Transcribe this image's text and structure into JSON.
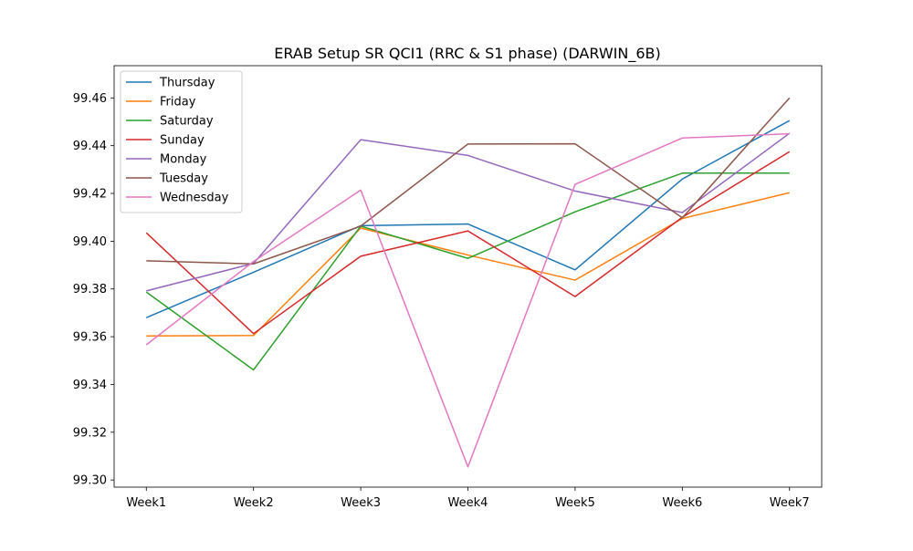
{
  "chart_data": {
    "type": "line",
    "title": "ERAB Setup SR QCI1 (RRC & S1 phase) (DARWIN_6B)",
    "xlabel": "",
    "ylabel": "",
    "categories": [
      "Week1",
      "Week2",
      "Week3",
      "Week4",
      "Week5",
      "Week6",
      "Week7"
    ],
    "ylim": [
      99.297,
      99.4735
    ],
    "yticks": [
      99.3,
      99.32,
      99.34,
      99.36,
      99.38,
      99.4,
      99.42,
      99.44,
      99.46
    ],
    "ytick_labels": [
      "99.30",
      "99.32",
      "99.34",
      "99.36",
      "99.38",
      "99.40",
      "99.42",
      "99.44",
      "99.46"
    ],
    "grid": false,
    "legend_position": "top-left",
    "series": [
      {
        "name": "Thursday",
        "color": "#1f77b4",
        "values": [
          99.368,
          99.387,
          99.4065,
          99.4072,
          99.388,
          99.426,
          99.4505
        ]
      },
      {
        "name": "Friday",
        "color": "#ff7f0e",
        "values": [
          99.3603,
          99.3605,
          99.4055,
          99.3942,
          99.3837,
          99.4095,
          99.4203
        ]
      },
      {
        "name": "Saturday",
        "color": "#2ca02c",
        "values": [
          99.3787,
          99.3461,
          99.4063,
          99.3928,
          99.4123,
          99.4285,
          99.4285
        ]
      },
      {
        "name": "Sunday",
        "color": "#d62728",
        "values": [
          99.4035,
          99.3613,
          99.3937,
          99.4043,
          99.3768,
          99.41,
          99.4375
        ]
      },
      {
        "name": "Monday",
        "color": "#9467bd",
        "values": [
          99.3792,
          99.3907,
          99.4425,
          99.4359,
          99.421,
          99.412,
          99.4452
        ]
      },
      {
        "name": "Tuesday",
        "color": "#8c564b",
        "values": [
          99.3918,
          99.3905,
          99.4063,
          99.4407,
          99.4408,
          99.4098,
          99.46
        ]
      },
      {
        "name": "Wednesday",
        "color": "#e377c2",
        "values": [
          99.3566,
          99.3915,
          99.4214,
          99.3055,
          99.4238,
          99.4432,
          99.445
        ]
      }
    ]
  }
}
